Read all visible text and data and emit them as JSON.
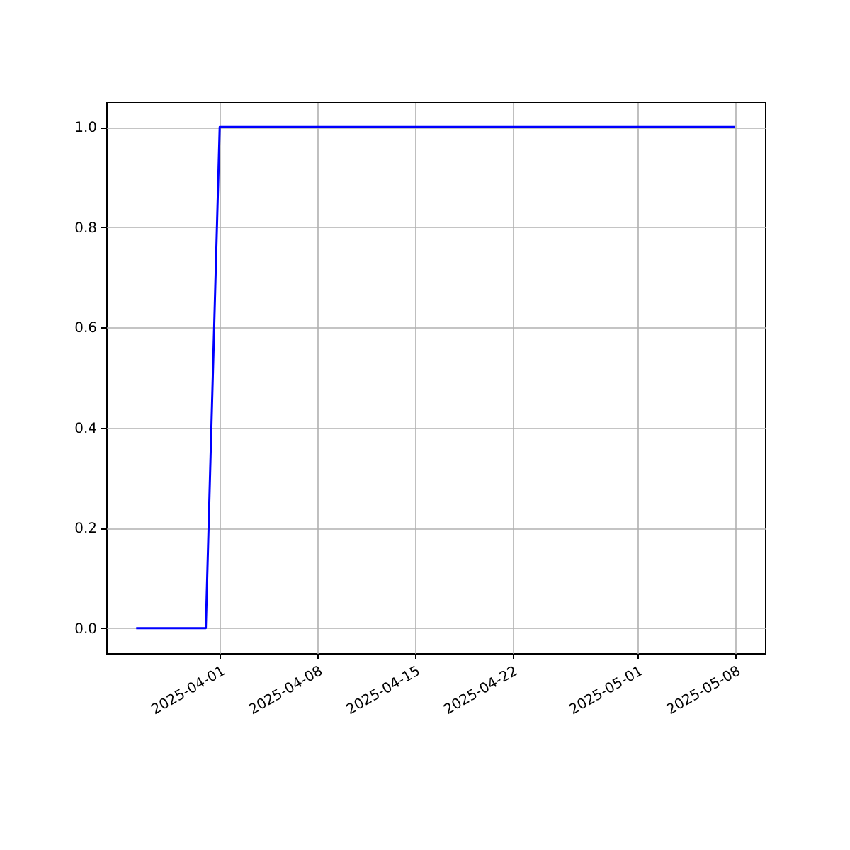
{
  "chart_data": {
    "type": "line",
    "x": [
      "2025-03-26",
      "2025-03-31",
      "2025-04-01",
      "2025-05-08"
    ],
    "series": [
      {
        "color": "#0000ff",
        "values": [
          0,
          0,
          1,
          1
        ]
      }
    ],
    "xlim": [
      "2025-03-23T20:24",
      "2025-05-10T03:36"
    ],
    "xticks": [
      "2025-04-01",
      "2025-04-08",
      "2025-04-15",
      "2025-04-22",
      "2025-05-01",
      "2025-05-08"
    ],
    "ylim": [
      -0.05,
      1.05
    ],
    "yticks": [
      {
        "value": 0,
        "label": "0.0"
      },
      {
        "value": 0.2,
        "label": "0.2"
      },
      {
        "value": 0.4,
        "label": "0.4"
      },
      {
        "value": 0.6,
        "label": "0.6"
      },
      {
        "value": 0.8,
        "label": "0.8"
      },
      {
        "value": 1,
        "label": "1.0"
      }
    ],
    "grid": true,
    "line_style": "solid"
  }
}
